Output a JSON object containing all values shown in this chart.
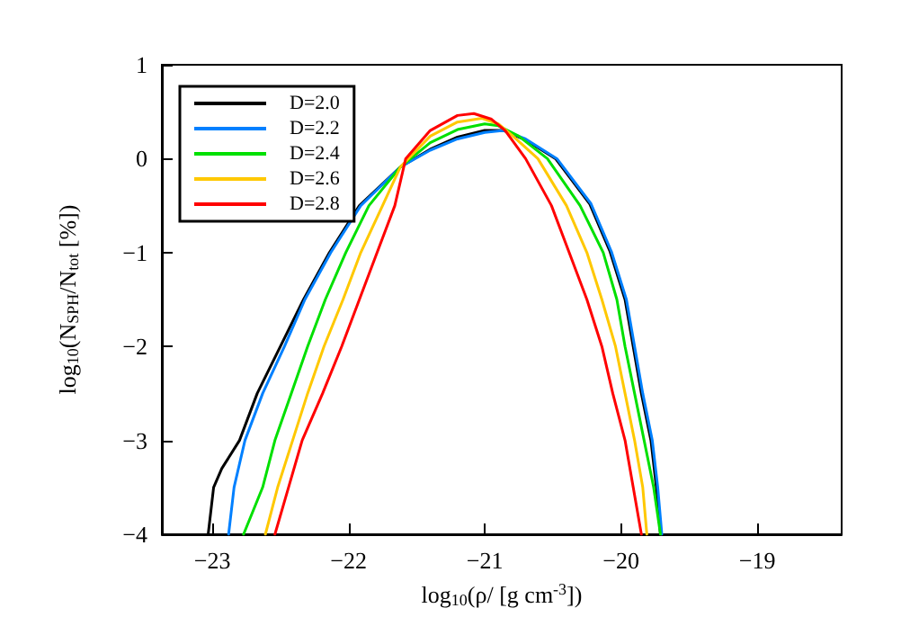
{
  "chart_data": {
    "type": "line",
    "xlabel": "log$_{10}$(ρ/ [g cm$^{-3}$])",
    "ylabel": "log$_{10}$(N$_{SPH}$/N$_{tot}$ [%])",
    "xlim": [
      -23.37,
      -18.38
    ],
    "ylim": [
      -4,
      1
    ],
    "xticks": [
      -23,
      -22,
      -21,
      -20,
      -19
    ],
    "yticks": [
      -4,
      -3,
      -2,
      -1,
      0,
      1
    ],
    "grid": false,
    "legend": "top left",
    "marker": "none",
    "line_style": "solid",
    "series": [
      {
        "name": "D=2.0",
        "color": "#000000",
        "x": [
          -23.03,
          -22.99,
          -22.93,
          -22.8,
          -22.67,
          -22.5,
          -22.33,
          -22.14,
          -21.92,
          -21.62,
          -21.4,
          -21.2,
          -21.0,
          -20.86,
          -20.7,
          -20.48,
          -20.23,
          -20.08,
          -19.97,
          -19.91,
          -19.85,
          -19.78,
          -19.74,
          -19.71
        ],
        "values": [
          -4,
          -3.5,
          -3.3,
          -3,
          -2.5,
          -2,
          -1.5,
          -1,
          -0.5,
          -0.09,
          0.1,
          0.23,
          0.3,
          0.3,
          0.2,
          0,
          -0.48,
          -0.99,
          -1.5,
          -2,
          -2.5,
          -3,
          -3.5,
          -4
        ]
      },
      {
        "name": "D=2.2",
        "color": "#0080ff",
        "x": [
          -22.88,
          -22.84,
          -22.76,
          -22.63,
          -22.47,
          -22.32,
          -22.13,
          -21.91,
          -21.62,
          -21.4,
          -21.2,
          -21.0,
          -20.86,
          -20.7,
          -20.47,
          -20.22,
          -20.07,
          -19.96,
          -19.9,
          -19.84,
          -19.77,
          -19.73,
          -19.7
        ],
        "values": [
          -4,
          -3.5,
          -3,
          -2.5,
          -2,
          -1.5,
          -1,
          -0.5,
          -0.09,
          0.09,
          0.21,
          0.28,
          0.3,
          0.21,
          0,
          -0.48,
          -0.99,
          -1.5,
          -2,
          -2.5,
          -3,
          -3.5,
          -4
        ]
      },
      {
        "name": "D=2.4",
        "color": "#00e000",
        "x": [
          -22.77,
          -22.63,
          -22.54,
          -22.42,
          -22.3,
          -22.17,
          -22.02,
          -21.85,
          -21.62,
          -21.4,
          -21.2,
          -21.0,
          -20.9,
          -20.75,
          -20.54,
          -20.3,
          -20.13,
          -20.03,
          -19.97,
          -19.9,
          -19.83,
          -19.76,
          -19.71
        ],
        "values": [
          -4,
          -3.5,
          -3,
          -2.5,
          -2,
          -1.5,
          -1,
          -0.5,
          -0.09,
          0.17,
          0.31,
          0.37,
          0.35,
          0.24,
          0,
          -0.5,
          -1,
          -1.5,
          -2,
          -2.5,
          -3,
          -3.5,
          -4
        ]
      },
      {
        "name": "D=2.6",
        "color": "#ffc800",
        "x": [
          -22.61,
          -22.52,
          -22.41,
          -22.3,
          -22.18,
          -22.04,
          -21.91,
          -21.75,
          -21.62,
          -21.4,
          -21.2,
          -21.02,
          -20.9,
          -20.8,
          -20.61,
          -20.4,
          -20.25,
          -20.14,
          -20.04,
          -19.97,
          -19.9,
          -19.84,
          -19.81
        ],
        "values": [
          -4,
          -3.5,
          -3,
          -2.5,
          -2,
          -1.5,
          -1,
          -0.5,
          -0.09,
          0.24,
          0.39,
          0.43,
          0.37,
          0.25,
          0,
          -0.5,
          -1,
          -1.5,
          -2,
          -2.5,
          -3,
          -3.5,
          -4
        ]
      },
      {
        "name": "D=2.8",
        "color": "#ff0000",
        "x": [
          -22.54,
          -22.44,
          -22.34,
          -22.19,
          -22.05,
          -21.92,
          -21.79,
          -21.66,
          -21.58,
          -21.4,
          -21.2,
          -21.08,
          -20.95,
          -20.85,
          -20.7,
          -20.51,
          -20.38,
          -20.25,
          -20.14,
          -20.06,
          -19.97,
          -19.91,
          -19.85
        ],
        "values": [
          -4,
          -3.5,
          -3,
          -2.5,
          -2,
          -1.5,
          -1,
          -0.5,
          0,
          0.3,
          0.46,
          0.48,
          0.42,
          0.3,
          0,
          -0.5,
          -1,
          -1.5,
          -2,
          -2.5,
          -3,
          -3.5,
          -4
        ]
      }
    ]
  }
}
